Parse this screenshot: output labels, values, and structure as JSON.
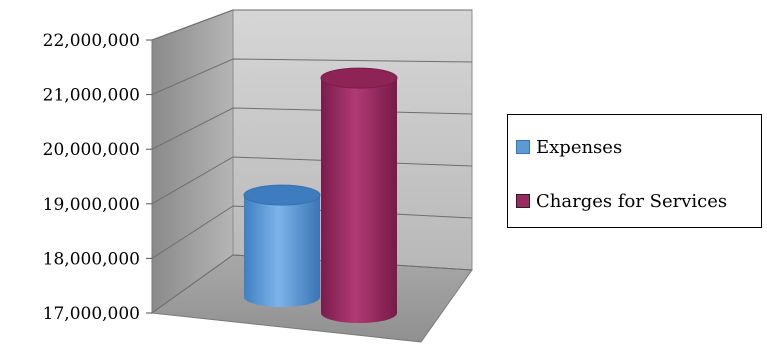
{
  "chart_data": {
    "type": "bar",
    "style": "3d-cylinder",
    "categories": [
      ""
    ],
    "series": [
      {
        "name": "Expenses",
        "values": [
          18800000
        ],
        "color": "#5b9bd5"
      },
      {
        "name": "Charges for Services",
        "values": [
          21150000
        ],
        "color": "#9b2a61"
      }
    ],
    "ylim": [
      17000000,
      22000000
    ],
    "yticks": [
      "22,000,000",
      "21,000,000",
      "20,000,000",
      "19,000,000",
      "18,000,000",
      "17,000,000"
    ],
    "grid": true,
    "legend": "right",
    "title": "",
    "xlabel": "",
    "ylabel": ""
  }
}
